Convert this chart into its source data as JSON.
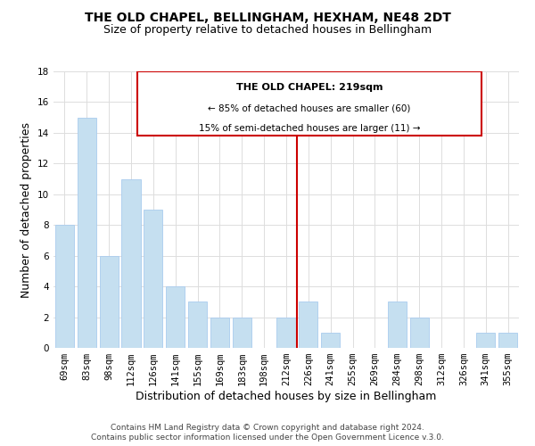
{
  "title": "THE OLD CHAPEL, BELLINGHAM, HEXHAM, NE48 2DT",
  "subtitle": "Size of property relative to detached houses in Bellingham",
  "xlabel": "Distribution of detached houses by size in Bellingham",
  "ylabel": "Number of detached properties",
  "bar_labels": [
    "69sqm",
    "83sqm",
    "98sqm",
    "112sqm",
    "126sqm",
    "141sqm",
    "155sqm",
    "169sqm",
    "183sqm",
    "198sqm",
    "212sqm",
    "226sqm",
    "241sqm",
    "255sqm",
    "269sqm",
    "284sqm",
    "298sqm",
    "312sqm",
    "326sqm",
    "341sqm",
    "355sqm"
  ],
  "bar_values": [
    8,
    15,
    6,
    11,
    9,
    4,
    3,
    2,
    2,
    0,
    2,
    3,
    1,
    0,
    0,
    3,
    2,
    0,
    0,
    1,
    1
  ],
  "bar_color": "#c5dff0",
  "bar_edge_color": "#aaccee",
  "reference_line_x_label": "212sqm",
  "reference_line_color": "#cc0000",
  "annotation_title": "THE OLD CHAPEL: 219sqm",
  "annotation_line1": "← 85% of detached houses are smaller (60)",
  "annotation_line2": "15% of semi-detached houses are larger (11) →",
  "annotation_box_edge_color": "#cc0000",
  "annotation_box_face_color": "#ffffff",
  "ylim": [
    0,
    18
  ],
  "yticks": [
    0,
    2,
    4,
    6,
    8,
    10,
    12,
    14,
    16,
    18
  ],
  "footer_line1": "Contains HM Land Registry data © Crown copyright and database right 2024.",
  "footer_line2": "Contains public sector information licensed under the Open Government Licence v.3.0.",
  "background_color": "#ffffff",
  "grid_color": "#dddddd",
  "title_fontsize": 10,
  "subtitle_fontsize": 9,
  "axis_label_fontsize": 9,
  "tick_fontsize": 7.5,
  "footer_fontsize": 6.5,
  "ann_title_fontsize": 8,
  "ann_text_fontsize": 7.5
}
